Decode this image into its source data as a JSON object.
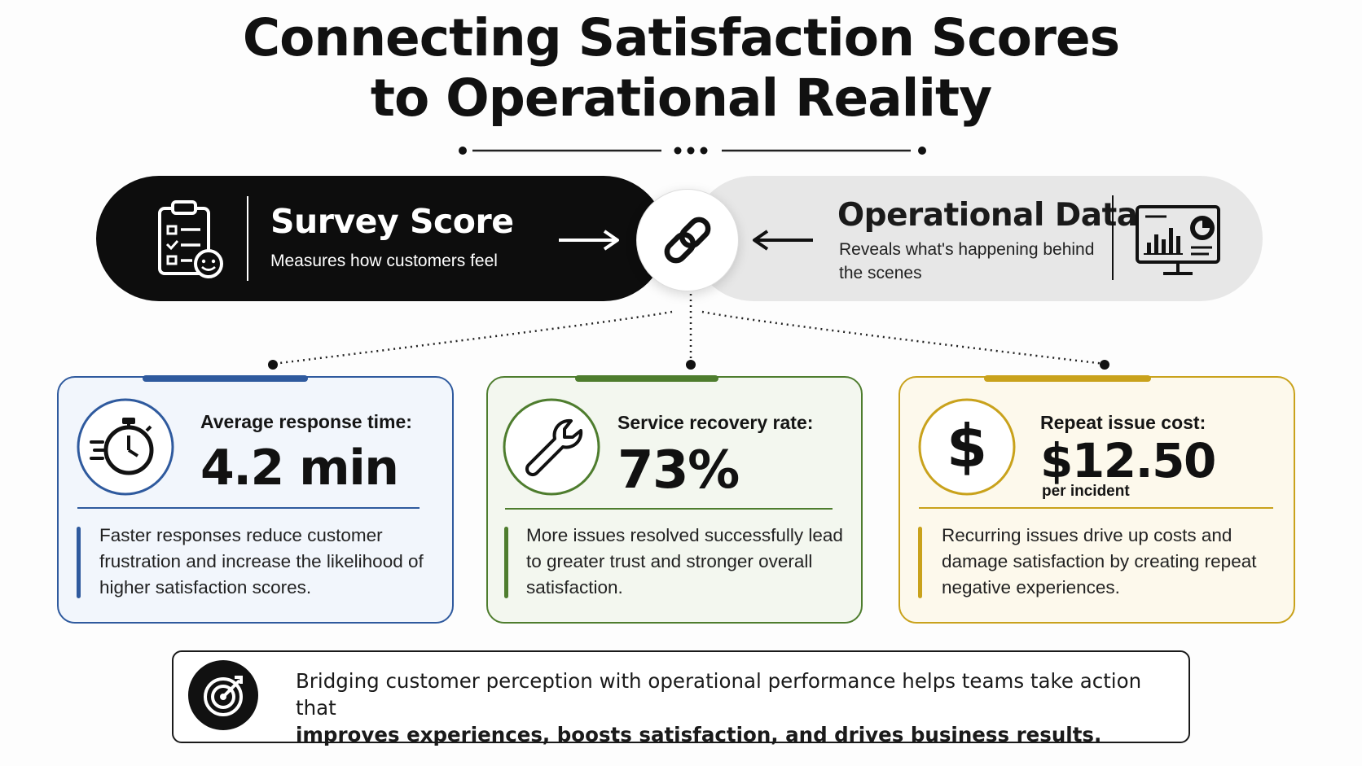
{
  "title": {
    "line1": "Connecting Satisfaction Scores",
    "line2": "to Operational Reality"
  },
  "survey": {
    "title": "Survey Score",
    "subtitle": "Measures how customers feel"
  },
  "operational": {
    "title": "Operational Data",
    "subtitle": "Reveals what's happening behind the scenes"
  },
  "cards": [
    {
      "label": "Average response time:",
      "value": "4.2 min",
      "unit": "",
      "description": "Faster responses reduce customer frustration and increase the likelihood of higher satisfaction scores.",
      "color": "#2f5a9e",
      "background": "#f2f6fc",
      "icon": "stopwatch-icon"
    },
    {
      "label": "Service recovery rate:",
      "value": "73%",
      "unit": "",
      "description": "More issues resolved successfully lead to greater trust and stronger overall satisfaction.",
      "color": "#4e7d2e",
      "background": "#f3f7ef",
      "icon": "wrench-icon"
    },
    {
      "label": "Repeat issue cost:",
      "value": "$12.50",
      "unit": "per incident",
      "description": "Recurring issues drive up costs and damage satisfaction by creating repeat negative experiences.",
      "color": "#c9a21c",
      "background": "#fdf9ec",
      "icon": "dollar-icon"
    }
  ],
  "bottom": {
    "text": "Bridging customer perception with operational performance helps teams take action that",
    "bold": "improves experiences, boosts satisfaction, and drives business results.",
    "icon": "target-icon"
  },
  "colors": {
    "dark": "#0d0d0d",
    "light_pill": "#e7e7e7"
  }
}
